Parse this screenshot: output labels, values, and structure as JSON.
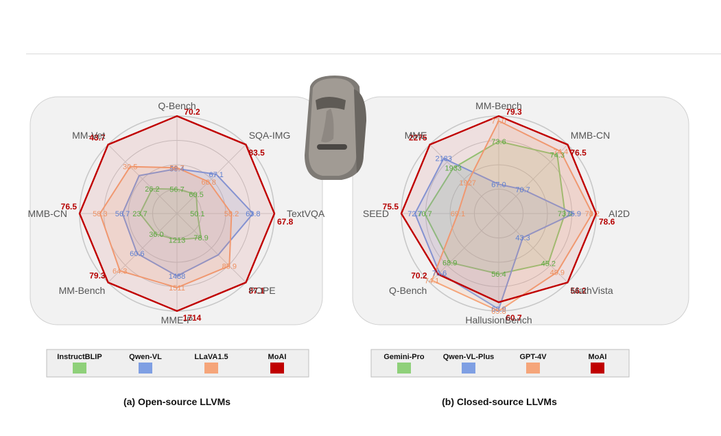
{
  "chart_data": [
    {
      "type": "radar",
      "caption": "(a) Open-source LLVMs",
      "axes": [
        "Q-Bench",
        "SQA-IMG",
        "TextVQA",
        "POPE",
        "MME-P",
        "MM-Bench",
        "MMB-CN",
        "MM-Vet"
      ],
      "series": [
        {
          "name": "InstructBLIP",
          "color": "#8fd07a",
          "value_color": "#5aa83f",
          "labels": [
            "56.7",
            "60.5",
            "50.1",
            "78.9",
            "1213",
            "36.0",
            "23.7",
            "26.2"
          ],
          "r": [
            0.25,
            0.28,
            0.21,
            0.35,
            0.27,
            0.3,
            0.38,
            0.36
          ]
        },
        {
          "name": "Qwen-VL",
          "color": "#7f9fe3",
          "value_color": "#5d7fd1",
          "labels": [
            "59.4",
            "67.1",
            "63.8",
            "",
            "1488",
            "60.6",
            "56.7",
            ""
          ],
          "r": [
            0.46,
            0.57,
            0.78,
            0.6,
            0.64,
            0.58,
            0.56,
            0.55
          ]
        },
        {
          "name": "LLaVA1.5",
          "color": "#f5a57a",
          "value_color": "#ee9060",
          "labels": [
            "58.7",
            "66.8",
            "58.2",
            "85.9",
            "1511",
            "64.3",
            "58.3",
            "30.5"
          ],
          "r": [
            0.47,
            0.46,
            0.56,
            0.76,
            0.76,
            0.83,
            0.79,
            0.68
          ]
        },
        {
          "name": "MoAI",
          "color": "#c00000",
          "value_color": "#b50000",
          "labels": [
            "70.2",
            "83.5",
            "67.8",
            "87.1",
            "1714",
            "79.3",
            "76.5",
            "43.7"
          ],
          "r": [
            1,
            1,
            1,
            1,
            1,
            1,
            1,
            1
          ]
        }
      ]
    },
    {
      "type": "radar",
      "caption": "(b) Closed-source LLVMs",
      "axes": [
        "MM-Bench",
        "MMB-CN",
        "AI2D",
        "MathVista",
        "HallusionBench",
        "Q-Bench",
        "SEED",
        "MME"
      ],
      "series": [
        {
          "name": "Gemini-Pro",
          "color": "#8fd07a",
          "value_color": "#5aa83f",
          "labels": [
            "73.6",
            "74.3",
            "73.9",
            "45.2",
            "56.4",
            "68.9",
            "70.7",
            "1933"
          ],
          "r": [
            0.74,
            0.85,
            0.68,
            0.72,
            0.62,
            0.71,
            0.76,
            0.66
          ]
        },
        {
          "name": "Qwen-VL-Plus",
          "color": "#7f9fe3",
          "value_color": "#5d7fd1",
          "labels": [
            "67.0",
            "70.7",
            "75.9",
            "43.3",
            "63.9",
            "70.6",
            "72.7",
            "2183"
          ],
          "r": [
            0.3,
            0.35,
            0.77,
            0.35,
            0.98,
            0.86,
            0.86,
            0.8
          ]
        },
        {
          "name": "GPT-4V",
          "color": "#f5a57a",
          "value_color": "#ee9060",
          "labels": [
            "77.0",
            "74.4",
            "78.2",
            "49.9",
            "65.8",
            "74.1",
            "69.1",
            "1927"
          ],
          "r": [
            0.95,
            0.9,
            0.96,
            0.85,
            1.0,
            0.97,
            0.42,
            0.45
          ]
        },
        {
          "name": "MoAI",
          "color": "#c00000",
          "value_color": "#b50000",
          "labels": [
            "79.3",
            "76.5",
            "78.6",
            "56.2",
            "60.7",
            "70.2",
            "75.5",
            "2275"
          ],
          "r": [
            1,
            1,
            1,
            1,
            0.91,
            0.88,
            1,
            1
          ]
        }
      ]
    }
  ]
}
